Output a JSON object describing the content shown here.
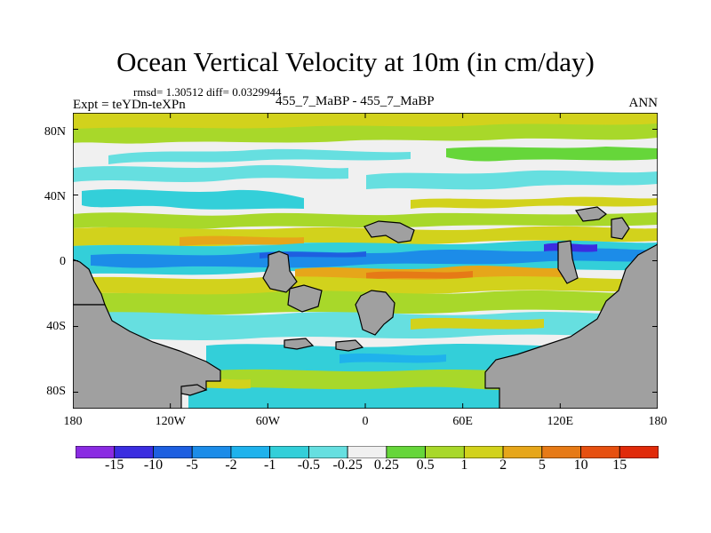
{
  "header": {
    "title": "Ocean Vertical Velocity at 10m (in cm/day)",
    "stats": "rmsd= 1.30512 diff= 0.0329944",
    "left_label": "Expt = teYDn-teXPn",
    "center_label": "455_7_MaBP - 455_7_MaBP",
    "right_label": "ANN"
  },
  "map": {
    "lon_labels": [
      "180",
      "120W",
      "60W",
      "0",
      "60E",
      "120E",
      "180"
    ],
    "lat_labels": [
      "80N",
      "40N",
      "0",
      "40S",
      "80S"
    ],
    "land_color": "#a0a0a0",
    "lon_ticks_deg": [
      -180,
      -120,
      -60,
      0,
      60,
      120,
      180
    ],
    "lat_ticks_deg": [
      80,
      40,
      0,
      -40,
      -80
    ]
  },
  "colorbar": {
    "labels": [
      "-15",
      "-10",
      "-5",
      "-2",
      "-1",
      "-0.5",
      "-0.25",
      "0.25",
      "0.5",
      "1",
      "2",
      "5",
      "10",
      "15"
    ],
    "colors": [
      "#8a2be2",
      "#3b2de0",
      "#1e5fe0",
      "#1c8ce8",
      "#1fb2ec",
      "#33cfd9",
      "#66dfe0",
      "#f0f0f0",
      "#66d63a",
      "#a8d82a",
      "#d2d21c",
      "#e6a61a",
      "#e67a16",
      "#e65010",
      "#e02a0a"
    ]
  }
}
